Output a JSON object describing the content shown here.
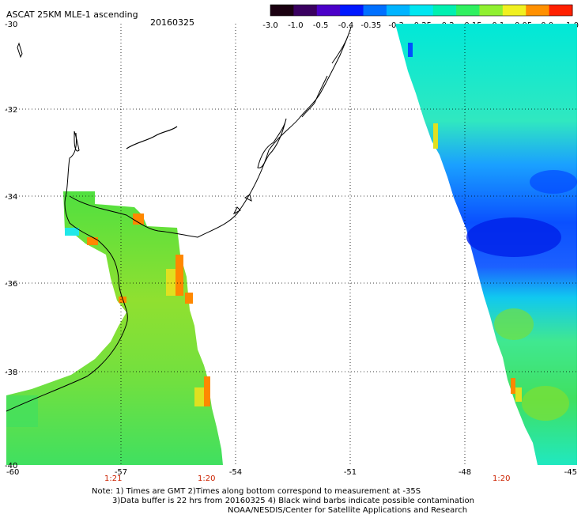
{
  "header": {
    "title": "ASCAT 25KM MLE-1 ascending",
    "date": "20160325"
  },
  "colorbar": {
    "labels": [
      "-3.0",
      "-1.0",
      "-0.5",
      "-0.4",
      "-0.35",
      "-0.3",
      "-0.25",
      "-0.2",
      "-0.15",
      "-0.1",
      "-0.05",
      "0.0",
      "1.0"
    ],
    "colors": [
      "#1a0010",
      "#3a0060",
      "#4b00c8",
      "#0018ff",
      "#0070ff",
      "#00b4ff",
      "#00e6f0",
      "#00f0b0",
      "#30f060",
      "#90f030",
      "#f0f020",
      "#ff9000",
      "#ff2000"
    ]
  },
  "axes": {
    "lat_labels": [
      "-30",
      "-32",
      "-34",
      "-36",
      "-38",
      "-40"
    ],
    "lon_labels": [
      "-60",
      "-57",
      "-54",
      "-51",
      "-48",
      "-45"
    ]
  },
  "pass_times": [
    "1:21",
    "1:20",
    "1:20"
  ],
  "notes": [
    "Note: 1) Times are GMT 2)Times along bottom correspond to measurement at -35S",
    "3)Data buffer is 22 hrs from 20160325 4) Black wind barbs indicate possible contamination",
    "NOAA/NESDIS/Center for Satellite Applications and Research"
  ],
  "legend_colors": {
    "green": "#40e040",
    "yellow": "#e8e020",
    "orange": "#ff8000",
    "cyan": "#00e8e0",
    "blue": "#0050ff",
    "dark_blue": "#0020e0"
  }
}
